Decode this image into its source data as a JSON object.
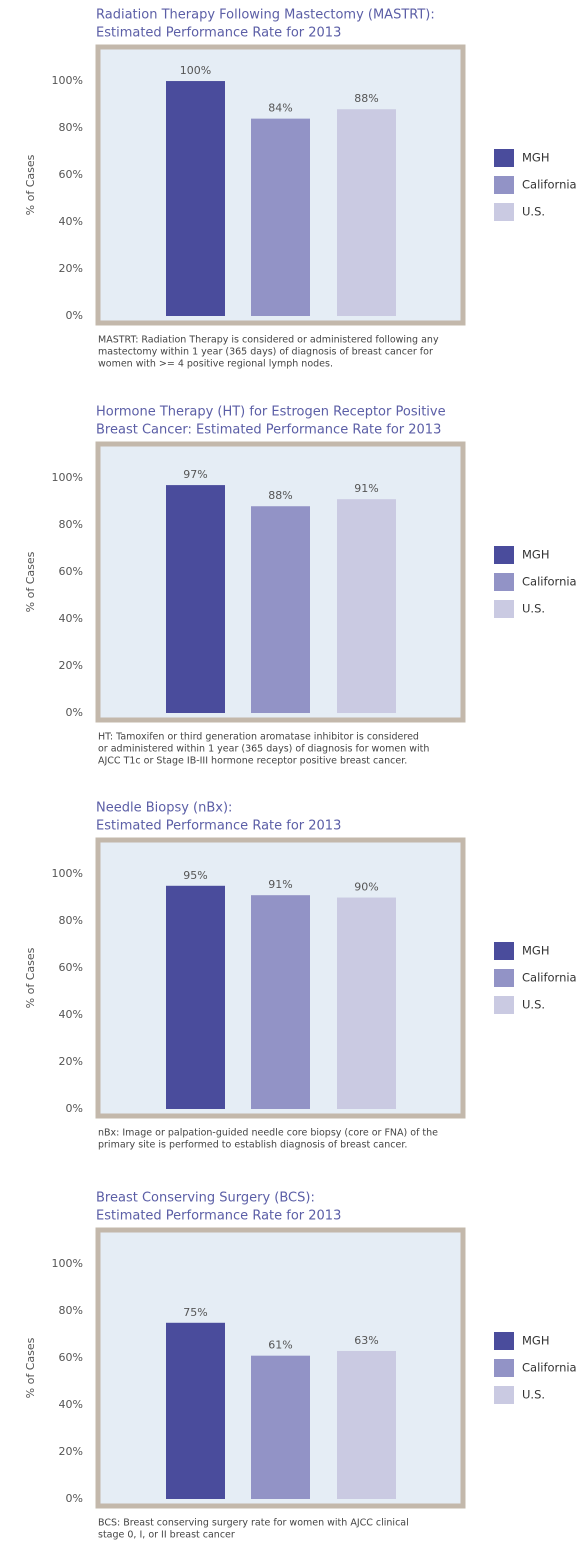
{
  "chart_data": [
    {
      "type": "bar",
      "title": [
        "Radiation Therapy Following Mastectomy (MASTRT):",
        "Estimated Performance Rate for 2013"
      ],
      "y_label": "% of Cases",
      "categories": [
        null
      ],
      "series": [
        {
          "name": "MGH",
          "color": "#4a4c9c",
          "values": [
            100
          ],
          "value_labels": [
            "100%"
          ]
        },
        {
          "name": "California",
          "color": "#9293c6",
          "values": [
            84
          ],
          "value_labels": [
            "84%"
          ]
        },
        {
          "name": "U.S.",
          "color": "#cacae2",
          "values": [
            88
          ],
          "value_labels": [
            "88%"
          ]
        }
      ],
      "ylim": [
        0,
        113
      ],
      "yticks": [
        {
          "value": 0,
          "label": "0%"
        },
        {
          "value": 20,
          "label": "20%"
        },
        {
          "value": 40,
          "label": "40%"
        },
        {
          "value": 60,
          "label": "60%"
        },
        {
          "value": 80,
          "label": "80%"
        },
        {
          "value": 100,
          "label": "100%"
        }
      ],
      "footnote": [
        "MASTRT: Radiation Therapy is considered or administered following any",
        "mastectomy within 1 year (365 days) of diagnosis of breast cancer for",
        "women with >= 4 positive regional lymph nodes."
      ]
    },
    {
      "type": "bar",
      "title": [
        "Hormone Therapy (HT) for Estrogen Receptor Positive",
        "Breast Cancer: Estimated Performance Rate for 2013"
      ],
      "y_label": "% of Cases",
      "categories": [
        null
      ],
      "series": [
        {
          "name": "MGH",
          "color": "#4a4c9c",
          "values": [
            97
          ],
          "value_labels": [
            "97%"
          ]
        },
        {
          "name": "California",
          "color": "#9293c6",
          "values": [
            88
          ],
          "value_labels": [
            "88%"
          ]
        },
        {
          "name": "U.S.",
          "color": "#cacae2",
          "values": [
            91
          ],
          "value_labels": [
            "91%"
          ]
        }
      ],
      "ylim": [
        0,
        113
      ],
      "yticks": [
        {
          "value": 0,
          "label": "0%"
        },
        {
          "value": 20,
          "label": "20%"
        },
        {
          "value": 40,
          "label": "40%"
        },
        {
          "value": 60,
          "label": "60%"
        },
        {
          "value": 80,
          "label": "80%"
        },
        {
          "value": 100,
          "label": "100%"
        }
      ],
      "footnote": [
        "HT: Tamoxifen or third generation aromatase inhibitor is considered",
        "or administered within 1 year (365 days) of diagnosis for women with",
        "AJCC T1c or Stage IB-III hormone receptor positive breast cancer."
      ]
    },
    {
      "type": "bar",
      "title": [
        "Needle Biopsy (nBx):",
        "Estimated Performance Rate for 2013"
      ],
      "y_label": "% of Cases",
      "categories": [
        null
      ],
      "series": [
        {
          "name": "MGH",
          "color": "#4a4c9c",
          "values": [
            95
          ],
          "value_labels": [
            "95%"
          ]
        },
        {
          "name": "California",
          "color": "#9293c6",
          "values": [
            91
          ],
          "value_labels": [
            "91%"
          ]
        },
        {
          "name": "U.S.",
          "color": "#cacae2",
          "values": [
            90
          ],
          "value_labels": [
            "90%"
          ]
        }
      ],
      "ylim": [
        0,
        113
      ],
      "yticks": [
        {
          "value": 0,
          "label": "0%"
        },
        {
          "value": 20,
          "label": "20%"
        },
        {
          "value": 40,
          "label": "40%"
        },
        {
          "value": 60,
          "label": "60%"
        },
        {
          "value": 80,
          "label": "80%"
        },
        {
          "value": 100,
          "label": "100%"
        }
      ],
      "footnote": [
        "nBx: Image or palpation-guided needle core biopsy (core or FNA) of the",
        "primary site is performed to establish diagnosis of breast cancer."
      ]
    },
    {
      "type": "bar",
      "title": [
        "Breast Conserving Surgery (BCS):",
        "Estimated Performance Rate for 2013"
      ],
      "y_label": "% of Cases",
      "categories": [
        null
      ],
      "series": [
        {
          "name": "MGH",
          "color": "#4a4c9c",
          "values": [
            75
          ],
          "value_labels": [
            "75%"
          ]
        },
        {
          "name": "California",
          "color": "#9293c6",
          "values": [
            61
          ],
          "value_labels": [
            "61%"
          ]
        },
        {
          "name": "U.S.",
          "color": "#cacae2",
          "values": [
            63
          ],
          "value_labels": [
            "63%"
          ]
        }
      ],
      "ylim": [
        0,
        113
      ],
      "yticks": [
        {
          "value": 0,
          "label": "0%"
        },
        {
          "value": 20,
          "label": "20%"
        },
        {
          "value": 40,
          "label": "40%"
        },
        {
          "value": 60,
          "label": "60%"
        },
        {
          "value": 80,
          "label": "80%"
        },
        {
          "value": 100,
          "label": "100%"
        }
      ],
      "footnote": [
        "BCS: Breast conserving surgery rate for women with AJCC clinical",
        "stage 0, I, or II breast cancer"
      ]
    }
  ]
}
